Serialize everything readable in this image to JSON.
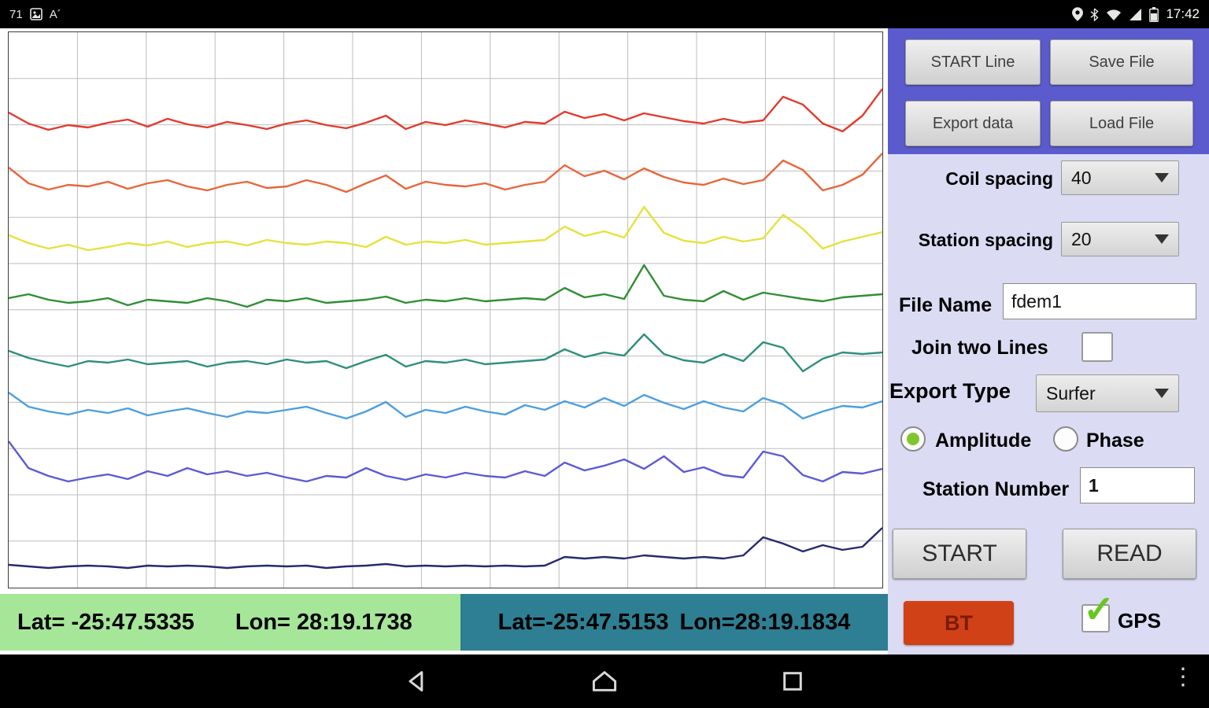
{
  "status_bar": {
    "notification_text": "71",
    "font_icon_glyph": "A´",
    "time": "17:42"
  },
  "coords": {
    "green": {
      "lat": "Lat= -25:47.5335",
      "lon": "Lon= 28:19.1738"
    },
    "teal": {
      "lat": "Lat=-25:47.5153",
      "lon": "Lon=28:19.1834"
    }
  },
  "panel": {
    "buttons": {
      "start_line": "START Line",
      "save_file": "Save File",
      "export_data": "Export data",
      "load_file": "Load File"
    },
    "coil_spacing": {
      "label": "Coil spacing",
      "value": "40"
    },
    "station_spacing": {
      "label": "Station spacing",
      "value": "20"
    },
    "file_name": {
      "label": "File Name",
      "value": "fdem1"
    },
    "join_two_lines": {
      "label": "Join two Lines",
      "checked": false
    },
    "export_type": {
      "label": "Export Type",
      "value": "Surfer"
    },
    "mode": {
      "amplitude_label": "Amplitude",
      "phase_label": "Phase",
      "selected": "Amplitude"
    },
    "station_number": {
      "label": "Station Number",
      "value": "1"
    },
    "start_button": "START",
    "read_button": "READ",
    "bt_button": "BT",
    "gps": {
      "label": "GPS",
      "checked": true,
      "check_glyph": "✓"
    }
  },
  "colors": {
    "panel_header": "#5b5bce",
    "panel_bg": "#dbdbf3",
    "coord_green_bg": "#a6e699",
    "coord_teal_bg": "#2e7f93",
    "bt_button_bg": "#d14118",
    "gps_check": "#67c71f",
    "radio_selected": "#7ec62c",
    "grid": "#bdbdbd"
  },
  "chart_data": {
    "type": "line",
    "title": "",
    "xlabel": "",
    "ylabel": "",
    "axes_labeled": false,
    "grid": true,
    "legend": false,
    "x_description": "45 survey stations, evenly spaced left to right (no axis tick labels shown)",
    "y_description": "8 stacked EM traces; values are amplitude offsets (px) above each trace baseline (px from chart top, chart height 706)",
    "series": [
      {
        "name": "trace-red",
        "color": "#e23b2e",
        "baseline": 118,
        "values": [
          16,
          2,
          -6,
          0,
          -3,
          3,
          7,
          -2,
          8,
          1,
          -3,
          4,
          0,
          -5,
          2,
          6,
          0,
          -4,
          3,
          12,
          -5,
          4,
          0,
          6,
          2,
          -3,
          4,
          2,
          17,
          9,
          14,
          6,
          15,
          10,
          5,
          2,
          8,
          3,
          6,
          36,
          26,
          2,
          -8,
          12,
          46
        ]
      },
      {
        "name": "trace-orange",
        "color": "#e8663c",
        "baseline": 196,
        "values": [
          24,
          4,
          -4,
          2,
          0,
          6,
          -3,
          4,
          8,
          0,
          -5,
          2,
          6,
          -2,
          0,
          8,
          2,
          -7,
          4,
          14,
          -3,
          6,
          2,
          0,
          4,
          -4,
          2,
          6,
          27,
          13,
          20,
          9,
          23,
          12,
          5,
          2,
          10,
          3,
          8,
          33,
          21,
          -5,
          2,
          15,
          42
        ]
      },
      {
        "name": "trace-yellow",
        "color": "#e6e13c",
        "baseline": 268,
        "values": [
          10,
          0,
          -7,
          -2,
          -9,
          -5,
          0,
          -3,
          2,
          -5,
          0,
          2,
          -3,
          4,
          0,
          -2,
          2,
          0,
          -5,
          8,
          -2,
          2,
          0,
          4,
          -2,
          0,
          2,
          4,
          21,
          9,
          15,
          7,
          46,
          13,
          3,
          0,
          8,
          2,
          6,
          36,
          18,
          -7,
          2,
          8,
          14
        ]
      },
      {
        "name": "trace-green",
        "color": "#2f8f33",
        "baseline": 342,
        "values": [
          4,
          9,
          2,
          -2,
          0,
          4,
          -5,
          2,
          0,
          -2,
          4,
          0,
          -7,
          2,
          0,
          4,
          -2,
          0,
          2,
          6,
          -2,
          2,
          0,
          4,
          0,
          2,
          4,
          2,
          17,
          5,
          9,
          3,
          46,
          7,
          2,
          0,
          13,
          2,
          11,
          7,
          3,
          0,
          5,
          7,
          9
        ]
      },
      {
        "name": "trace-teal",
        "color": "#2f8f7a",
        "baseline": 420,
        "values": [
          15,
          6,
          0,
          -5,
          2,
          0,
          4,
          -2,
          0,
          2,
          -5,
          0,
          2,
          -2,
          4,
          0,
          2,
          -7,
          2,
          10,
          -5,
          2,
          0,
          4,
          -2,
          0,
          2,
          4,
          17,
          7,
          13,
          9,
          36,
          11,
          3,
          0,
          11,
          2,
          26,
          19,
          -11,
          5,
          13,
          11,
          13
        ]
      },
      {
        "name": "trace-lightblue",
        "color": "#4b9fe0",
        "baseline": 484,
        "values": [
          26,
          8,
          2,
          -2,
          4,
          0,
          6,
          -3,
          2,
          6,
          0,
          -5,
          2,
          0,
          4,
          8,
          0,
          -7,
          2,
          14,
          -5,
          4,
          0,
          8,
          2,
          -2,
          10,
          4,
          15,
          7,
          19,
          9,
          23,
          13,
          5,
          15,
          7,
          2,
          19,
          11,
          -7,
          2,
          9,
          7,
          15
        ]
      },
      {
        "name": "trace-purple",
        "color": "#5b5bd6",
        "baseline": 566,
        "values": [
          46,
          12,
          2,
          -5,
          0,
          4,
          -2,
          8,
          2,
          12,
          4,
          8,
          2,
          6,
          0,
          -5,
          2,
          0,
          12,
          2,
          -3,
          4,
          0,
          6,
          2,
          0,
          8,
          2,
          19,
          9,
          15,
          23,
          11,
          27,
          7,
          13,
          3,
          0,
          33,
          27,
          3,
          -5,
          7,
          5,
          11
        ]
      },
      {
        "name": "trace-navy",
        "color": "#252a6e",
        "baseline": 680,
        "values": [
          3,
          1,
          -1,
          1,
          2,
          1,
          -1,
          2,
          1,
          2,
          1,
          -1,
          1,
          2,
          1,
          2,
          -1,
          1,
          2,
          4,
          1,
          2,
          1,
          2,
          1,
          2,
          1,
          2,
          13,
          11,
          13,
          11,
          15,
          13,
          11,
          13,
          11,
          15,
          38,
          30,
          20,
          28,
          22,
          26,
          50
        ]
      }
    ]
  }
}
